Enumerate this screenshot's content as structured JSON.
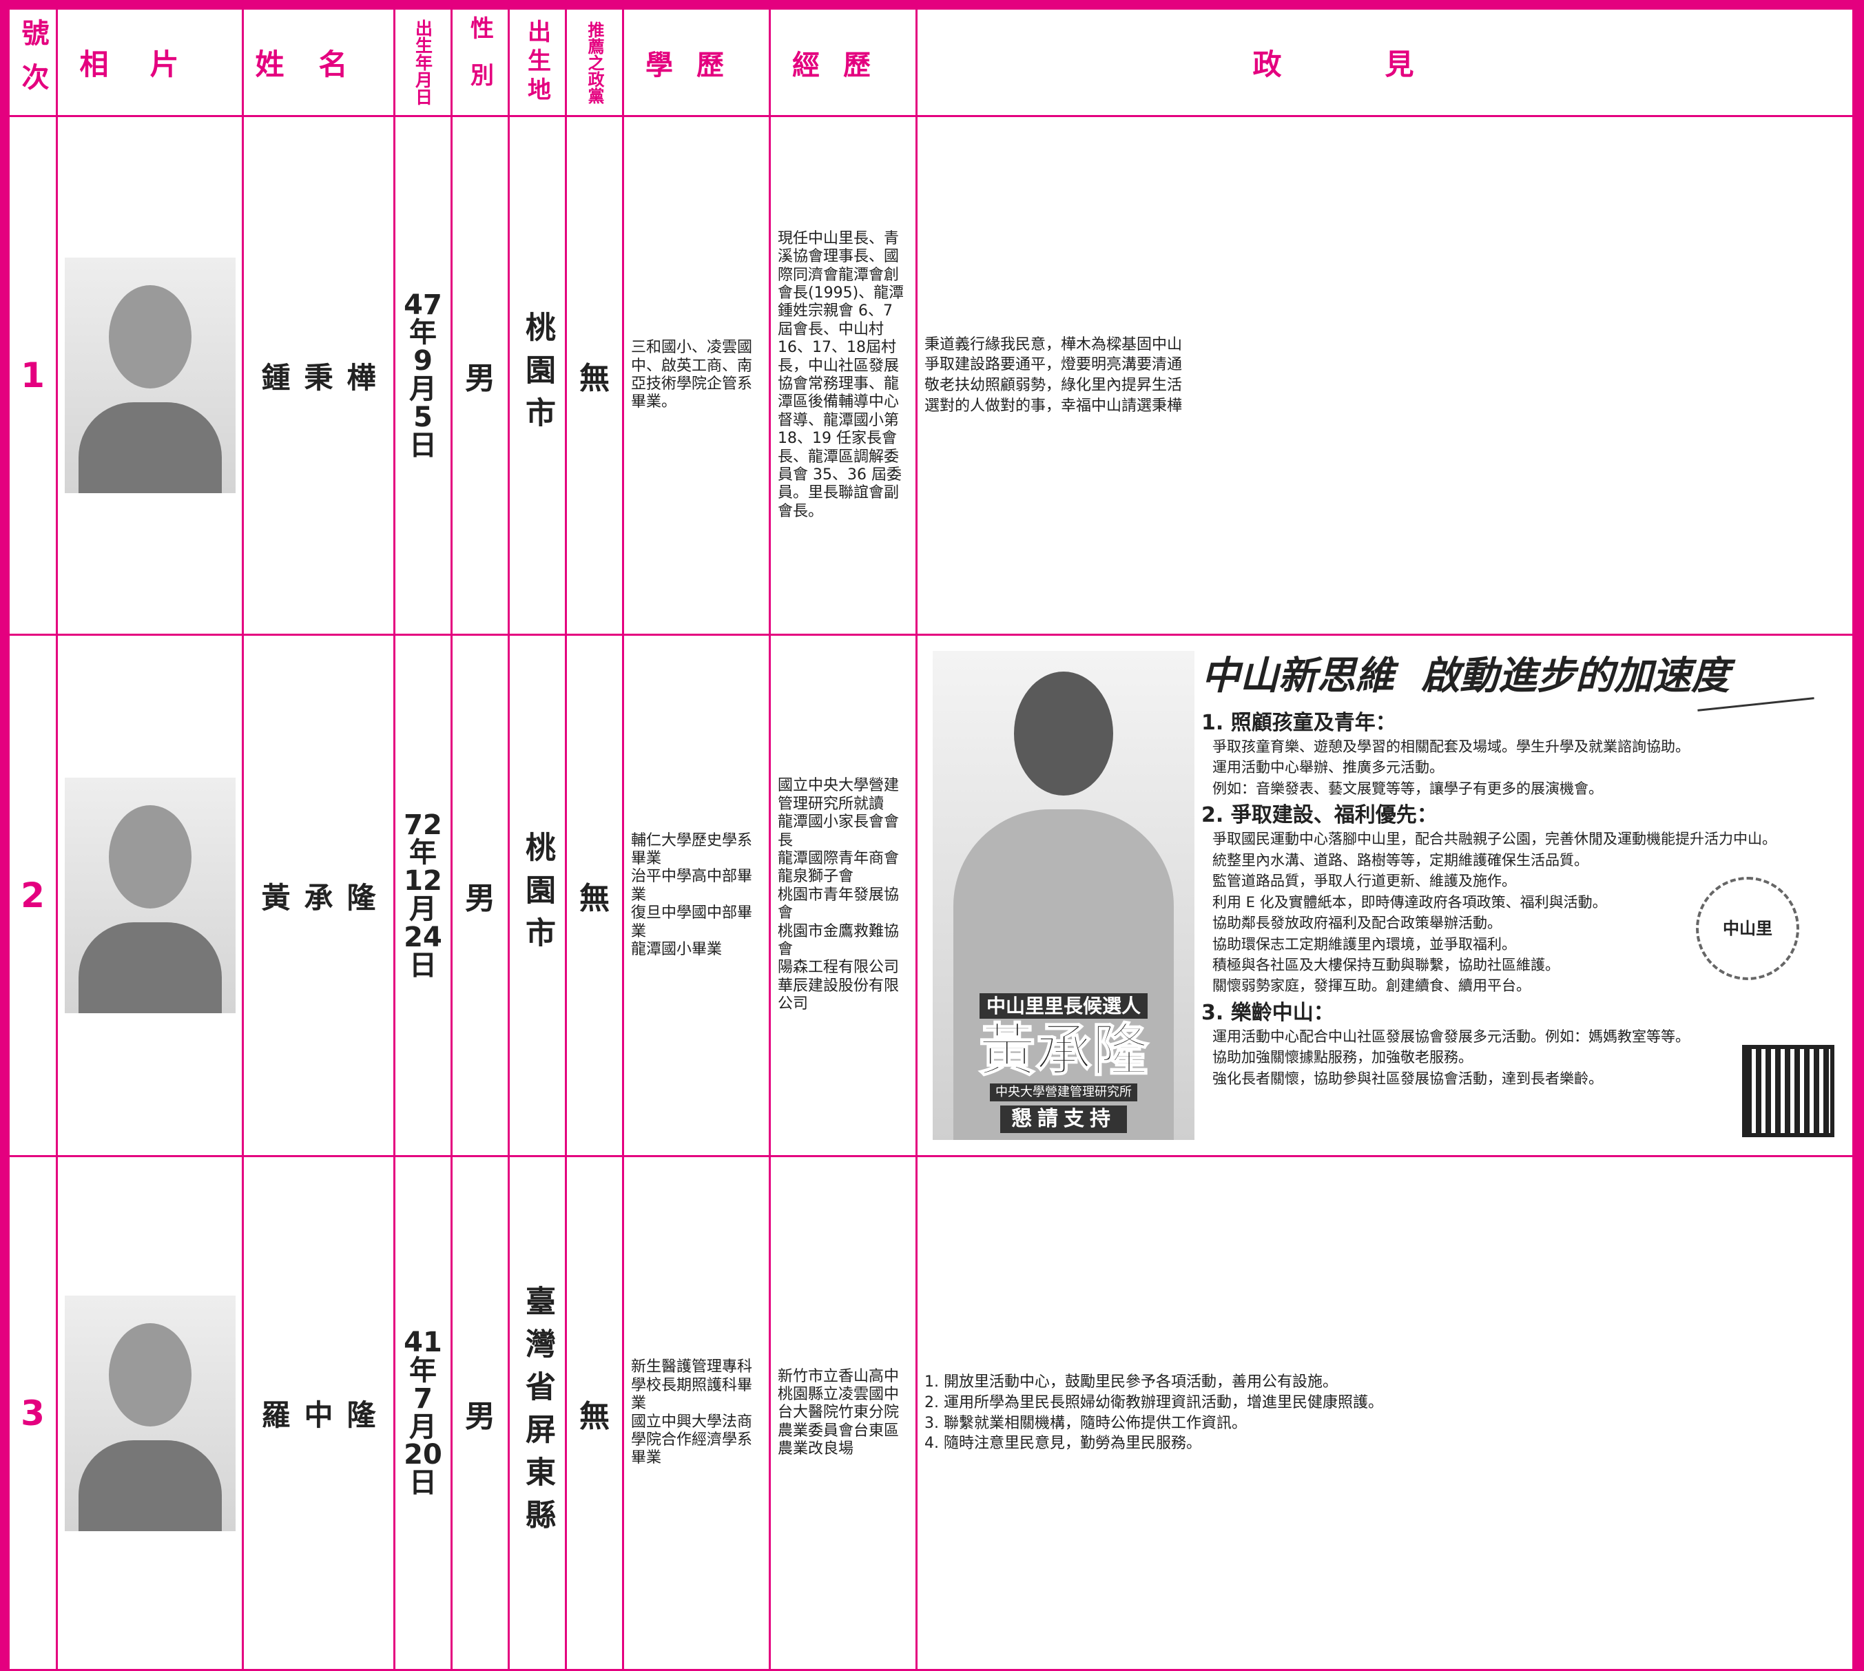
{
  "header": {
    "columns": [
      "號次",
      "相片",
      "姓名",
      "出生年月日",
      "性別",
      "出生地",
      "推薦之政黨",
      "學歷",
      "經歷",
      "政見"
    ]
  },
  "candidates": [
    {
      "number": 1,
      "name": "鍾秉樺",
      "birth": [
        "47",
        "年",
        "9",
        "月",
        "5",
        "日"
      ],
      "gender": "男",
      "birthplace": "桃園市",
      "party": "無",
      "education": [
        "三和國小、凌雲國中、啟英工商、南亞技術學院企管系畢業。"
      ],
      "experience": [
        "現任中山里長、青溪協會理事長、國際同濟會龍潭會創會長(1995)、龍潭鍾姓宗親會 6、7 屆會長、中山村 16、17、18屆村長，中山社區發展協會常務理事、龍潭區後備輔導中心督導、龍潭國小第 18、19 任家長會長、龍潭區調解委員會 35、36 屆委員。里長聯誼會副會長。"
      ],
      "platform": [
        "秉道義行緣我民意，樺木為樑基固中山",
        "爭取建設路要通平，燈要明亮溝要清通",
        "敬老扶幼照顧弱勢，綠化里內提昇生活",
        "選對的人做對的事，幸福中山請選秉樺"
      ]
    },
    {
      "number": 2,
      "name": "黃承隆",
      "birth": [
        "72",
        "年",
        "12",
        "月",
        "24",
        "日"
      ],
      "gender": "男",
      "birthplace": "桃園市",
      "party": "無",
      "education": [
        "輔仁大學歷史學系畢業",
        "治平中學高中部畢業",
        "復旦中學國中部畢業",
        "龍潭國小畢業"
      ],
      "experience": [
        "國立中央大學營建管理研究所就讀",
        "龍潭國小家長會會長",
        "龍潭國際青年商會",
        "龍泉獅子會",
        "桃園市青年發展協會",
        "桃園市金鷹救難協會",
        "陽森工程有限公司",
        "華辰建設股份有限公司"
      ],
      "platform": {
        "headline": "中山新思維  啟動進步的加速度",
        "sections": [
          {
            "heading": "1. 照顧孩童及青年：",
            "items": [
              "爭取孩童育樂、遊憩及學習的相關配套及場域。學生升學及就業諮詢協助。",
              "運用活動中心舉辦、推廣多元活動。",
              "例如：音樂發表、藝文展覽等等，讓學子有更多的展演機會。"
            ]
          },
          {
            "heading": "2. 爭取建設、福利優先：",
            "items": [
              "爭取國民運動中心落腳中山里，配合共融親子公園，完善休閒及運動機能提升活力中山。",
              "統整里內水溝、道路、路樹等等，定期維護確保生活品質。",
              "監管道路品質，爭取人行道更新、維護及施作。",
              "利用 E 化及實體紙本，即時傳達政府各項政策、福利與活動。",
              "協助鄰長發放政府福利及配合政策舉辦活動。",
              "協助環保志工定期維護里內環境，並爭取福利。",
              "積極與各社區及大樓保持互動與聯繫，協助社區維護。",
              "關懷弱勢家庭，發揮互助。創建續食、續用平台。"
            ]
          },
          {
            "heading": "3. 樂齡中山：",
            "items": [
              "運用活動中心配合中山社區發展協會發展多元活動。例如：媽媽教室等等。",
              "協助加強關懷據點服務，加強敬老服務。",
              "強化長者關懷，協助參與社區發展協會活動，達到長者樂齡。"
            ]
          }
        ],
        "poster": {
          "role": "中山里里長候選人",
          "name": "黃承隆",
          "school": "中央大學營建管理研究所",
          "appeal": "懇請支持",
          "badge": "中山里"
        }
      }
    },
    {
      "number": 3,
      "name": "羅中隆",
      "birth": [
        "41",
        "年",
        "7",
        "月",
        "20",
        "日"
      ],
      "gender": "男",
      "birthplace": "臺灣省屏東縣",
      "party": "無",
      "education": [
        "新生醫護管理專科學校長期照護科畢業",
        "國立中興大學法商學院合作經濟學系畢業"
      ],
      "experience": [
        "新竹市立香山高中",
        "桃園縣立凌雲國中",
        "台大醫院竹東分院",
        "農業委員會台東區農業改良場"
      ],
      "platform": [
        "1. 開放里活動中心，鼓勵里民參予各項活動，善用公有設施。",
        "2. 運用所學為里民長照婦幼衛教辦理資訊活動，增進里民健康照護。",
        "3. 聯繫就業相關機構，隨時公佈提供工作資訊。",
        "4. 隨時注意里民意見，勤勞為里民服務。"
      ]
    }
  ]
}
